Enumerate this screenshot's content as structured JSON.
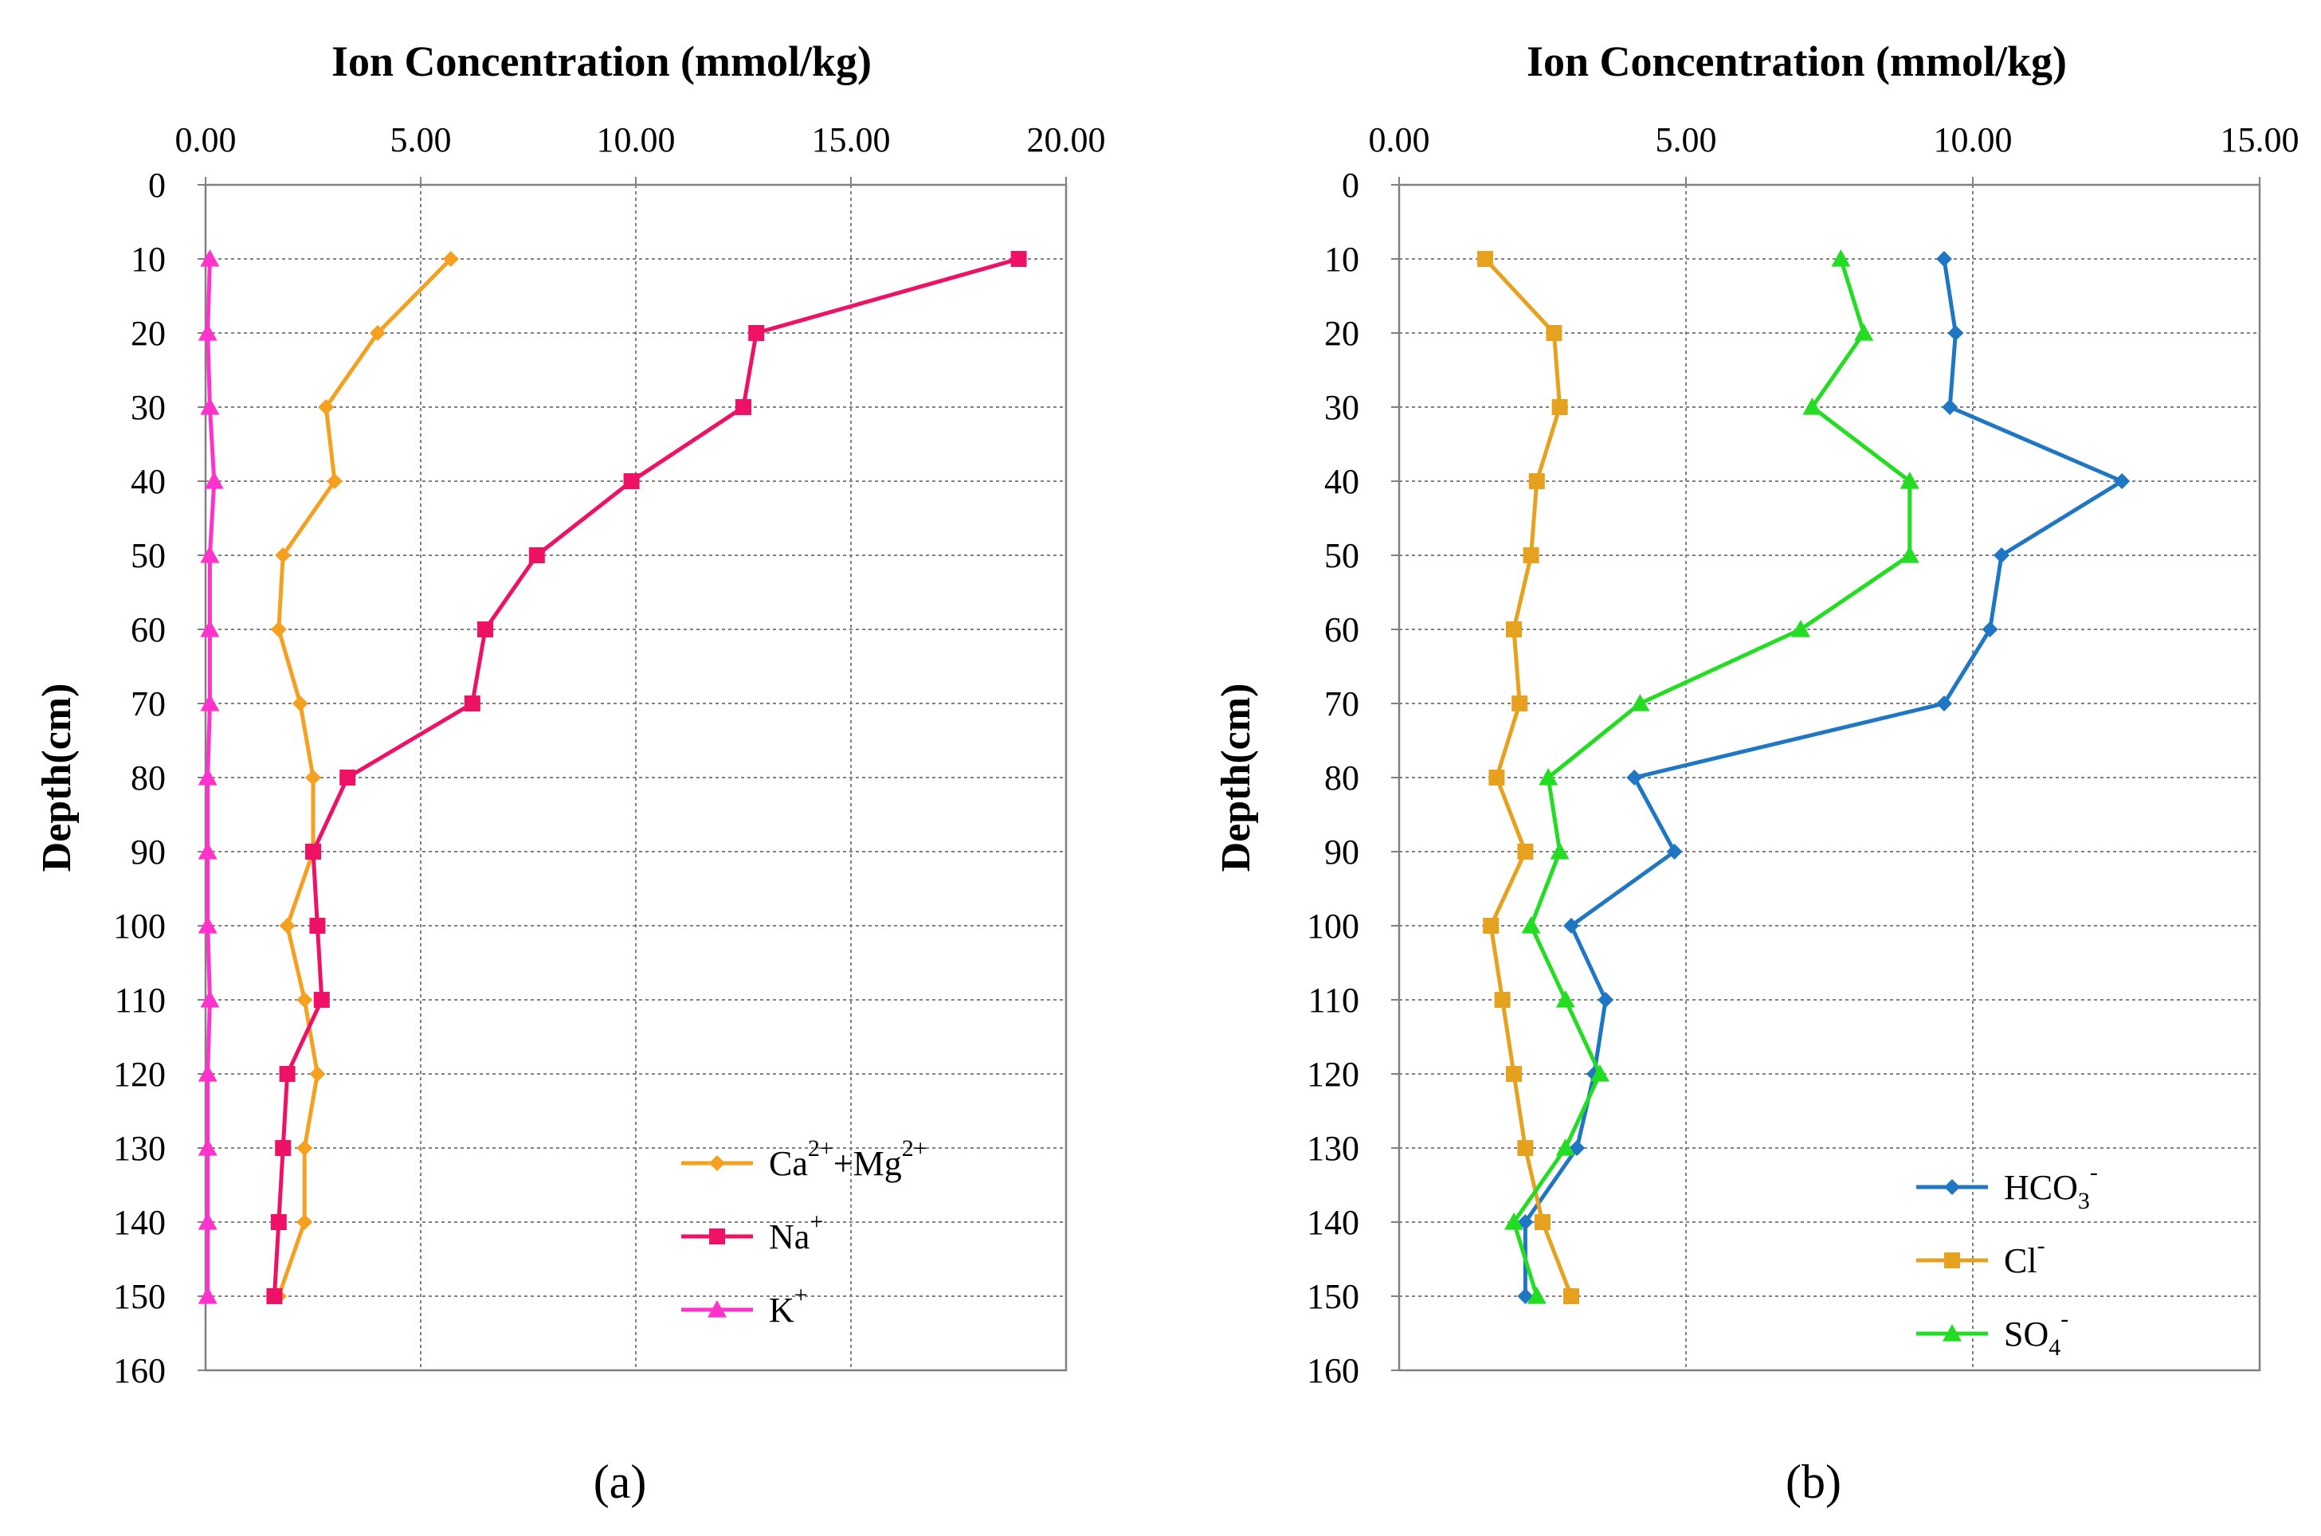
{
  "chart_data": [
    {
      "type": "line",
      "panel_label": "(a)",
      "title": "Ion Concentration (mmol/kg)",
      "ylabel": "Depth(cm)",
      "xlim": [
        0,
        20
      ],
      "ylim": [
        0,
        160
      ],
      "x_ticks": [
        "0.00",
        "5.00",
        "10.00",
        "15.00",
        "20.00"
      ],
      "x_tick_values": [
        0,
        5,
        10,
        15,
        20
      ],
      "y_ticks": [
        "0",
        "10",
        "20",
        "30",
        "40",
        "50",
        "60",
        "70",
        "80",
        "90",
        "100",
        "110",
        "120",
        "130",
        "140",
        "150",
        "160"
      ],
      "y_tick_values": [
        0,
        10,
        20,
        30,
        40,
        50,
        60,
        70,
        80,
        90,
        100,
        110,
        120,
        130,
        140,
        150,
        160
      ],
      "grid": true,
      "legend_position": "bottom-right",
      "depth": [
        10,
        20,
        30,
        40,
        50,
        60,
        70,
        80,
        90,
        100,
        110,
        120,
        130,
        140,
        150
      ],
      "series": [
        {
          "name_main": "Ca",
          "name_sup1": "2+",
          "name_mid": "+Mg",
          "name_sup2": "2+",
          "color": "#F5A01E",
          "marker": "diamond",
          "values": [
            5.7,
            4.0,
            2.8,
            3.0,
            1.8,
            1.7,
            2.2,
            2.5,
            2.5,
            1.9,
            2.3,
            2.6,
            2.3,
            2.3,
            1.7
          ]
        },
        {
          "name_main": "Na",
          "name_sup1": "+",
          "color": "#EE1166",
          "marker": "square",
          "values": [
            18.9,
            12.8,
            12.5,
            9.9,
            7.7,
            6.5,
            6.2,
            3.3,
            2.5,
            2.6,
            2.7,
            1.9,
            1.8,
            1.7,
            1.6
          ]
        },
        {
          "name_main": "K",
          "name_sup1": "+",
          "color": "#FF33CC",
          "marker": "triangle",
          "values": [
            0.1,
            0.05,
            0.1,
            0.2,
            0.1,
            0.1,
            0.1,
            0.05,
            0.05,
            0.05,
            0.1,
            0.05,
            0.05,
            0.05,
            0.05
          ]
        }
      ]
    },
    {
      "type": "line",
      "panel_label": "(b)",
      "title": "Ion Concentration (mmol/kg)",
      "ylabel": "Depth(cm)",
      "xlim": [
        0,
        15
      ],
      "ylim": [
        0,
        160
      ],
      "x_ticks": [
        "0.00",
        "5.00",
        "10.00",
        "15.00"
      ],
      "x_tick_values": [
        0,
        5,
        10,
        15
      ],
      "y_ticks": [
        "0",
        "10",
        "20",
        "30",
        "40",
        "50",
        "60",
        "70",
        "80",
        "90",
        "100",
        "110",
        "120",
        "130",
        "140",
        "150",
        "160"
      ],
      "y_tick_values": [
        0,
        10,
        20,
        30,
        40,
        50,
        60,
        70,
        80,
        90,
        100,
        110,
        120,
        130,
        140,
        150,
        160
      ],
      "grid": true,
      "legend_position": "bottom-right",
      "depth": [
        10,
        20,
        30,
        40,
        50,
        60,
        70,
        80,
        90,
        100,
        110,
        120,
        130,
        140,
        150
      ],
      "series": [
        {
          "name_main": "HCO",
          "name_sub": "3",
          "name_sup1": "-",
          "color": "#1F77C4",
          "marker": "diamond",
          "values": [
            9.5,
            9.7,
            9.6,
            12.6,
            10.5,
            10.3,
            9.5,
            4.1,
            4.8,
            3.0,
            3.6,
            3.4,
            3.1,
            2.2,
            2.2
          ]
        },
        {
          "name_main": "Cl",
          "name_sup1": "-",
          "color": "#E6A21E",
          "marker": "square",
          "values": [
            1.5,
            2.7,
            2.8,
            2.4,
            2.3,
            2.0,
            2.1,
            1.7,
            2.2,
            1.6,
            1.8,
            2.0,
            2.2,
            2.5,
            3.0
          ]
        },
        {
          "name_main": "SO",
          "name_sub": "4",
          "name_sup1": "-",
          "color": "#22DD22",
          "marker": "triangle",
          "values": [
            7.7,
            8.1,
            7.2,
            8.9,
            8.9,
            7.0,
            4.2,
            2.6,
            2.8,
            2.3,
            2.9,
            3.5,
            2.9,
            2.0,
            2.4
          ]
        }
      ]
    }
  ]
}
